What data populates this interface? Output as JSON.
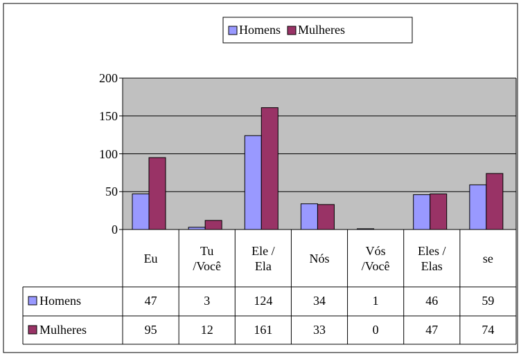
{
  "chart_data": {
    "type": "bar",
    "categories": [
      "Eu",
      "Tu /Você",
      "Ele / Ela",
      "Nós",
      "Vós /Você",
      "Eles / Elas",
      "se"
    ],
    "series": [
      {
        "name": "Homens",
        "color": "#9999ff",
        "values": [
          47,
          3,
          124,
          34,
          1,
          46,
          59
        ]
      },
      {
        "name": "Mulheres",
        "color": "#993366",
        "values": [
          95,
          12,
          161,
          33,
          0,
          47,
          74
        ]
      }
    ],
    "ylim": [
      0,
      200
    ],
    "yticks": [
      0,
      50,
      100,
      150,
      200
    ],
    "grid": true,
    "legend": "top"
  }
}
